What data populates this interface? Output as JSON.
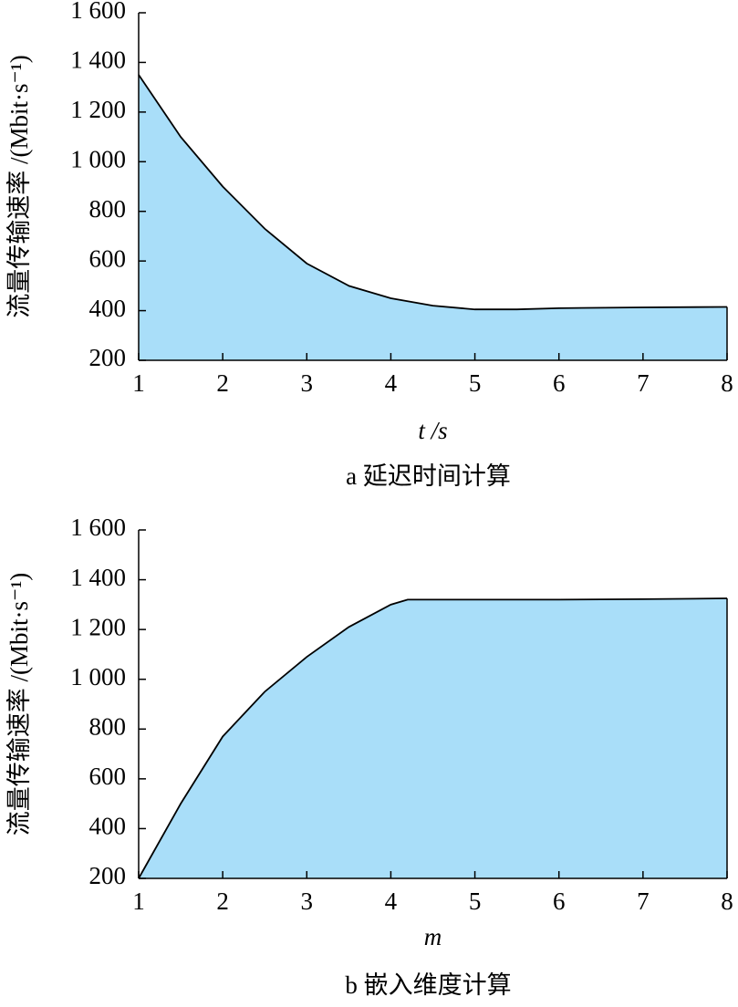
{
  "chart_data": [
    {
      "type": "area",
      "ylabel": "流量传输速率 /(Mbit·s⁻¹)",
      "xlabel": "t /s",
      "caption": "a 延迟时间计算",
      "x": [
        1,
        1.5,
        2,
        2.5,
        3,
        3.5,
        4,
        4.5,
        5,
        5.5,
        6,
        7,
        8
      ],
      "values": [
        1350,
        1100,
        900,
        730,
        590,
        500,
        450,
        420,
        405,
        405,
        410,
        413,
        415
      ],
      "color": "#a9def9",
      "line_color": "#000000",
      "xlim": [
        1,
        8
      ],
      "xticks": [
        1,
        2,
        3,
        4,
        5,
        6,
        7,
        8
      ],
      "ylim": [
        200,
        1600
      ],
      "yticks": [
        200,
        400,
        600,
        800,
        {
          "value": 1000,
          "label": "1 000"
        },
        {
          "value": 1200,
          "label": "1 200"
        },
        {
          "value": 1400,
          "label": "1 400"
        },
        {
          "value": 1600,
          "label": "1 600"
        }
      ]
    },
    {
      "type": "area",
      "ylabel": "流量传输速率 /(Mbit·s⁻¹)",
      "xlabel": "m",
      "caption": "b 嵌入维度计算",
      "x": [
        1,
        1.5,
        2,
        2.5,
        3,
        3.5,
        4,
        4.2,
        5,
        6,
        7,
        8
      ],
      "values": [
        200,
        500,
        770,
        950,
        1090,
        1210,
        1300,
        1320,
        1320,
        1320,
        1322,
        1325
      ],
      "color": "#a9def9",
      "line_color": "#000000",
      "xlim": [
        1,
        8
      ],
      "xticks": [
        1,
        2,
        3,
        4,
        5,
        6,
        7,
        8
      ],
      "ylim": [
        200,
        1600
      ],
      "yticks": [
        200,
        400,
        600,
        800,
        {
          "value": 1000,
          "label": "1 000"
        },
        {
          "value": 1200,
          "label": "1 200"
        },
        {
          "value": 1400,
          "label": "1 400"
        },
        {
          "value": 1600,
          "label": "1 600"
        }
      ]
    }
  ]
}
